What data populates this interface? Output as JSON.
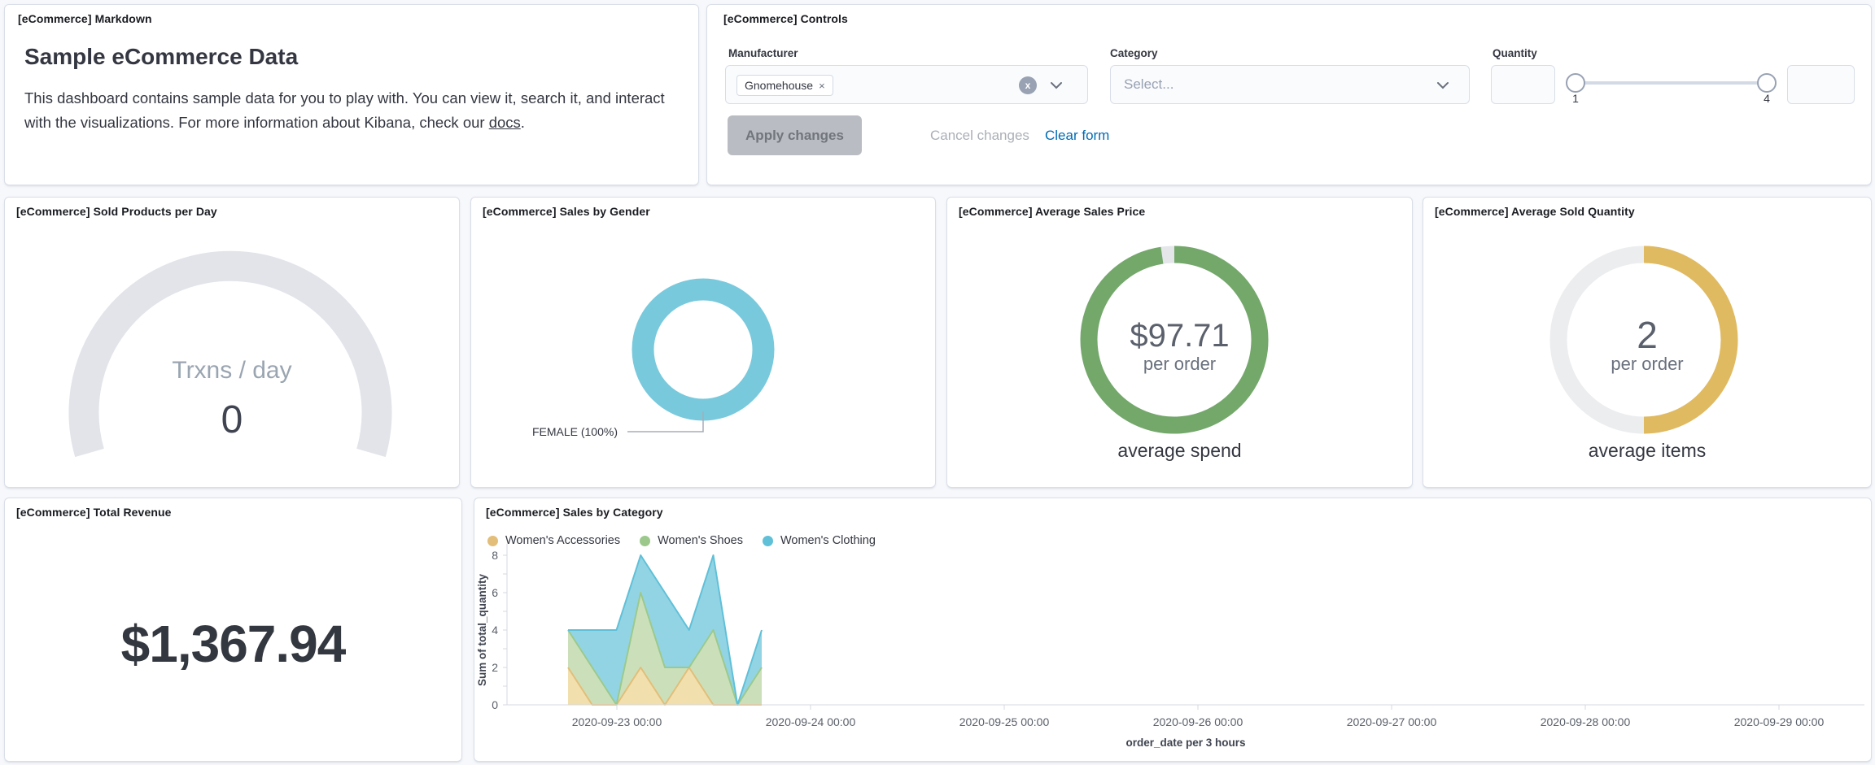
{
  "panels": {
    "markdown": {
      "title": "[eCommerce] Markdown",
      "heading": "Sample eCommerce Data",
      "body": "This dashboard contains sample data for you to play with. You can view it, search it, and interact with the visualizations. For more information about Kibana, check our ",
      "link_text": "docs",
      "body_suffix": "."
    },
    "controls": {
      "title": "[eCommerce] Controls",
      "manufacturer_label": "Manufacturer",
      "manufacturer_tag": "Gnomehouse",
      "tag_remove": "×",
      "clear_selection": "x",
      "category_label": "Category",
      "category_placeholder": "Select...",
      "quantity_label": "Quantity",
      "slider_min": "1",
      "slider_max": "4",
      "apply_label": "Apply changes",
      "cancel_label": "Cancel changes",
      "clear_label": "Clear form"
    },
    "gauge": {
      "title": "[eCommerce] Sold Products per Day",
      "label": "Trxns / day",
      "value": "0",
      "arc_color": "#E2E4E9"
    },
    "gender": {
      "title": "[eCommerce] Sales by Gender",
      "slice_label": "FEMALE (100%)",
      "color": "#79C9DD"
    },
    "price": {
      "title": "[eCommerce] Average Sales Price",
      "value": "$97.71",
      "unit": "per order",
      "caption": "average spend",
      "percent": 97.71,
      "color": "#74A86B",
      "track_color": "#E4E6EA"
    },
    "quantity": {
      "title": "[eCommerce] Average Sold Quantity",
      "value": "2",
      "unit": "per order",
      "caption": "average items",
      "percent": 50,
      "color": "#E0BA61",
      "track_color": "#ECEDEF"
    },
    "revenue": {
      "title": "[eCommerce] Total Revenue",
      "value": "$1,367.94"
    },
    "category_chart": {
      "title": "[eCommerce] Sales by Category"
    }
  },
  "chart_data": {
    "type": "area",
    "stacked": true,
    "title": "[eCommerce] Sales by Category",
    "x": [
      "2020-09-22 18:00",
      "2020-09-22 21:00",
      "2020-09-23 00:00",
      "2020-09-23 03:00",
      "2020-09-23 06:00",
      "2020-09-23 09:00",
      "2020-09-23 12:00",
      "2020-09-23 15:00",
      "2020-09-23 18:00"
    ],
    "series": [
      {
        "name": "Women's Accessories",
        "color": "#E2BE79",
        "fill": "#F1DFAE",
        "values": [
          2,
          0,
          0,
          2,
          0,
          2,
          0,
          0,
          0
        ]
      },
      {
        "name": "Women's Shoes",
        "color": "#9CC98B",
        "fill": "#CBE0BA",
        "values": [
          2,
          2,
          0,
          4,
          2,
          0,
          4,
          0,
          2
        ]
      },
      {
        "name": "Women's Clothing",
        "color": "#5FC0D8",
        "fill": "#92D4E4",
        "values": [
          0,
          2,
          4,
          2,
          4,
          2,
          4,
          0,
          2
        ]
      }
    ],
    "xlabel": "order_date per 3 hours",
    "ylabel": "Sum of total_quantity",
    "ylim": [
      0,
      8
    ],
    "yticks": [
      0,
      2,
      4,
      6,
      8
    ],
    "xticks": [
      "2020-09-23 00:00",
      "2020-09-24 00:00",
      "2020-09-25 00:00",
      "2020-09-26 00:00",
      "2020-09-27 00:00",
      "2020-09-28 00:00",
      "2020-09-29 00:00"
    ],
    "legend_position": "top"
  }
}
